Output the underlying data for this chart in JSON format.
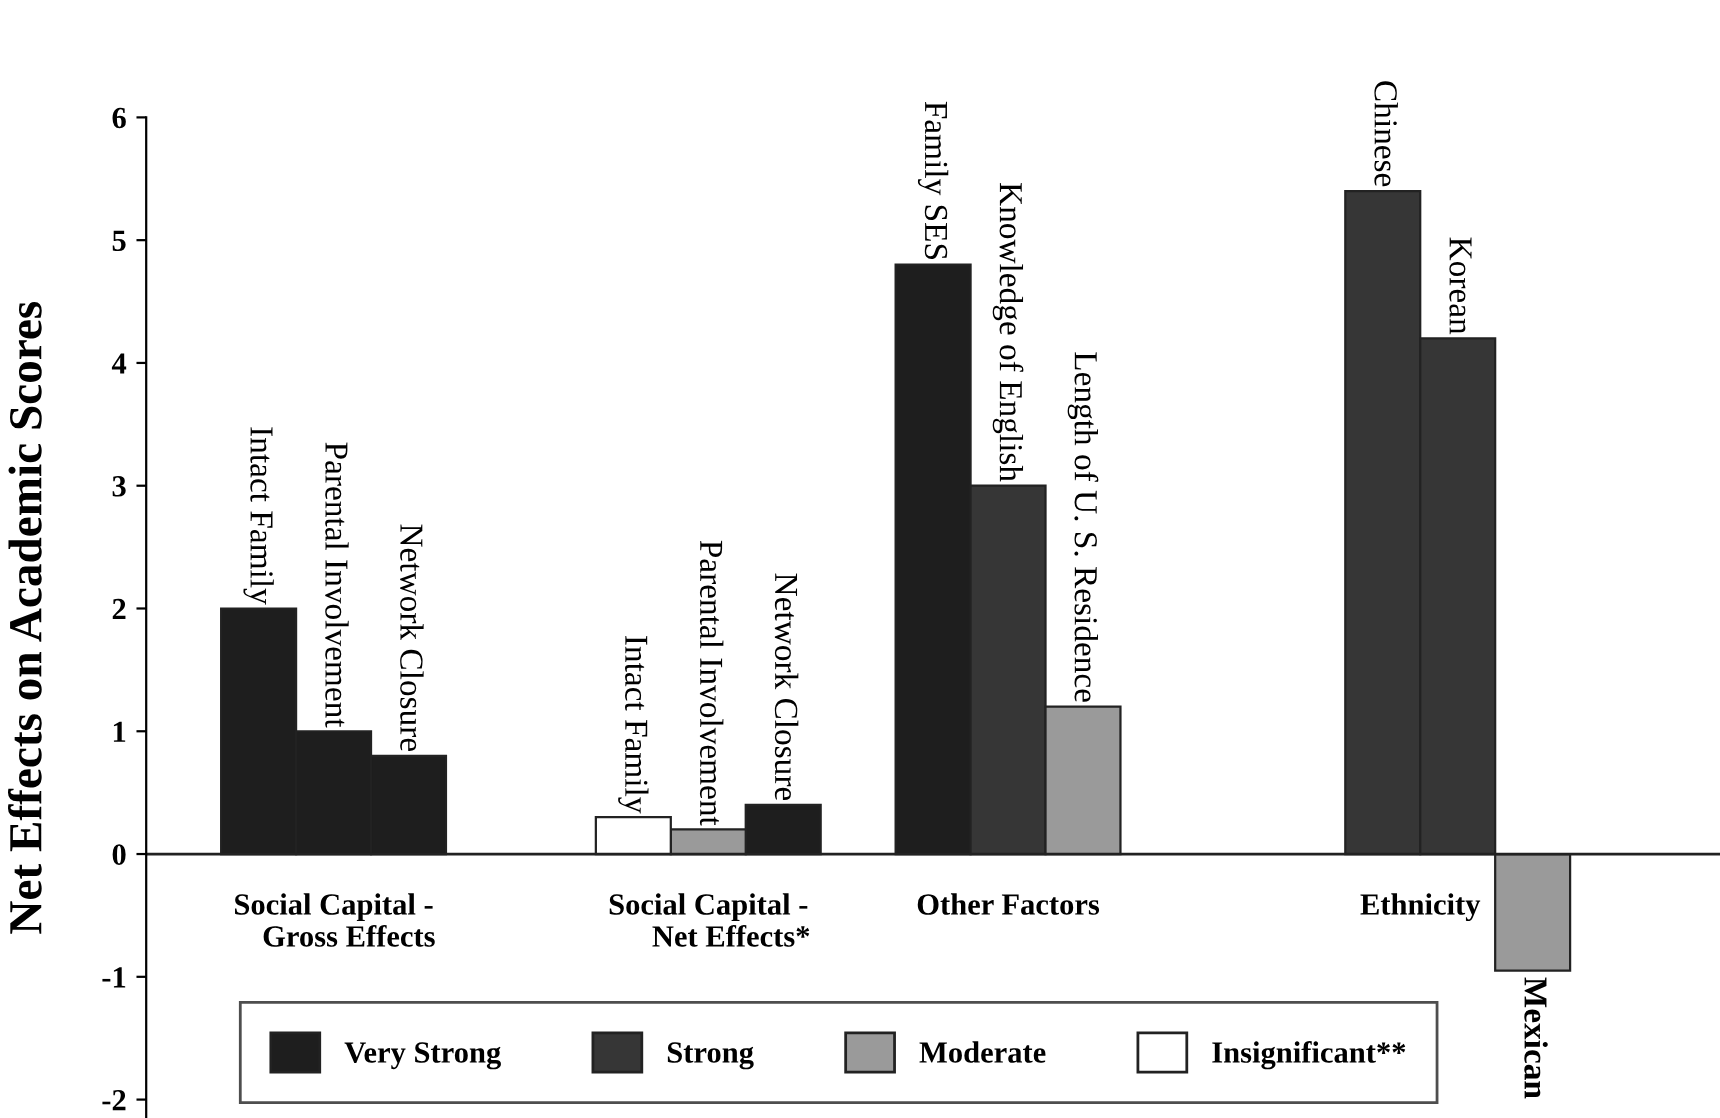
{
  "chart_data": {
    "type": "bar",
    "ylabel": "Net Effects on Academic Scores",
    "categories": [
      null,
      "Intact Family",
      "Parental Involvement",
      "Network Closure",
      null,
      null,
      "Intact Family",
      "Parental Involvement",
      "Network Closure",
      null,
      "Family SES",
      "Knowledge of English",
      "Length of U. S. Residence",
      null,
      null,
      null,
      "Chinese",
      "Korean",
      "Mexican",
      null,
      null
    ],
    "stacked": true,
    "series": [
      {
        "name": "Very Strong",
        "color": "#1e1e1e",
        "values": [
          null,
          2.0,
          1.0,
          0.8,
          null,
          null,
          null,
          null,
          0.4,
          null,
          4.8,
          null,
          null,
          null,
          null,
          null,
          null,
          null,
          null,
          null,
          null
        ]
      },
      {
        "name": "Strong",
        "color": "#363636",
        "values": [
          null,
          null,
          null,
          null,
          null,
          null,
          null,
          null,
          null,
          null,
          null,
          3.0,
          null,
          null,
          null,
          null,
          5.4,
          4.2,
          null,
          null,
          null
        ]
      },
      {
        "name": "Moderate",
        "color": "#9a9a9a",
        "values": [
          null,
          null,
          null,
          null,
          null,
          null,
          null,
          0.2,
          null,
          null,
          null,
          null,
          1.2,
          null,
          null,
          null,
          null,
          null,
          -0.95,
          null,
          null
        ]
      },
      {
        "name": "Insignificant**",
        "color": "#ffffff",
        "values": [
          null,
          null,
          null,
          null,
          null,
          null,
          0.3,
          null,
          null,
          null,
          null,
          null,
          null,
          null,
          null,
          null,
          null,
          null,
          null,
          null,
          null
        ]
      }
    ],
    "annotations": [
      "Social Capital -\n    Gross Effects",
      "Social Capital -\n      Net Effects*",
      "Other Factors",
      "Ethnicity"
    ],
    "ref_lines": [
      {
        "axis": "y",
        "value": 0,
        "label": null,
        "color": "#222222"
      }
    ],
    "ylim": [
      -2.15,
      6
    ],
    "yticks": [
      -2,
      -1,
      0,
      1,
      2,
      3,
      4,
      5,
      6
    ],
    "legend": "bottom"
  }
}
